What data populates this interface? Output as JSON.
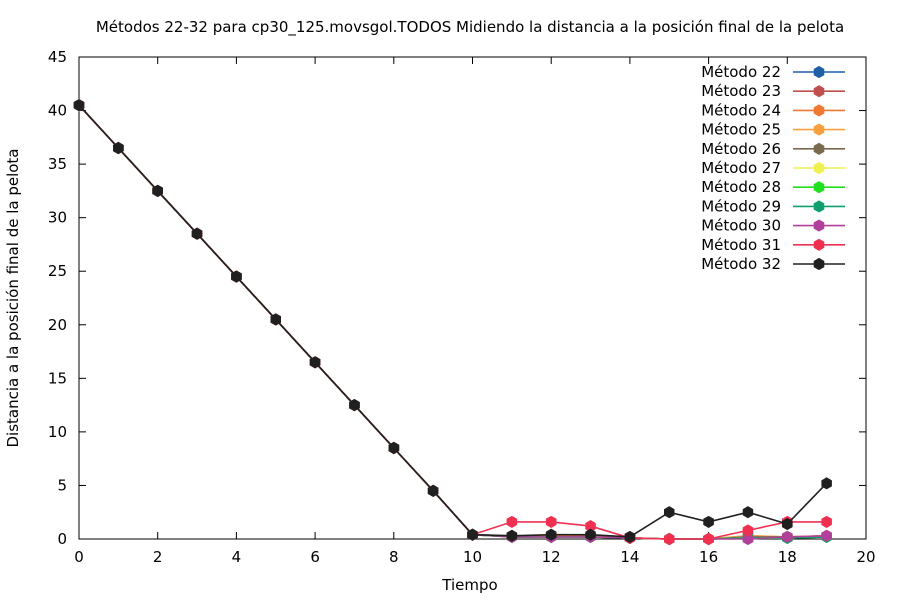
{
  "chart_data": {
    "type": "line",
    "title": "Métodos 22-32 para cp30_125.movsgol.TODOS Midiendo la distancia a la posición final de la pelota",
    "xlabel": "Tiempo",
    "ylabel": "Distancia a la posición final de la pelota",
    "xlim": [
      0,
      20
    ],
    "ylim": [
      0,
      45
    ],
    "xticks": [
      0,
      2,
      4,
      6,
      8,
      10,
      12,
      14,
      16,
      18,
      20
    ],
    "yticks": [
      0,
      5,
      10,
      15,
      20,
      25,
      30,
      35,
      40,
      45
    ],
    "grid": false,
    "legend_position": "top-right",
    "x": [
      0,
      1,
      2,
      3,
      4,
      5,
      6,
      7,
      8,
      9,
      10,
      11,
      12,
      13,
      14,
      15,
      16,
      17,
      18,
      19
    ],
    "series": [
      {
        "name": "Método 22",
        "color": "#1f5fa8",
        "values": [
          40.5,
          36.5,
          32.5,
          28.5,
          24.5,
          20.5,
          16.5,
          12.5,
          8.5,
          4.5,
          0.4,
          0.2,
          0.2,
          0.2,
          0.1,
          0.0,
          0.0,
          0.1,
          0.1,
          0.2
        ]
      },
      {
        "name": "Método 23",
        "color": "#c0504d",
        "values": [
          40.5,
          36.5,
          32.5,
          28.5,
          24.5,
          20.5,
          16.5,
          12.5,
          8.5,
          4.5,
          0.4,
          0.3,
          0.3,
          0.3,
          0.1,
          0.0,
          0.0,
          0.1,
          0.2,
          0.3
        ]
      },
      {
        "name": "Método 24",
        "color": "#f07830",
        "values": [
          40.5,
          36.5,
          32.5,
          28.5,
          24.5,
          20.5,
          16.5,
          12.5,
          8.5,
          4.5,
          0.4,
          0.2,
          0.3,
          0.2,
          0.1,
          0.0,
          0.0,
          0.3,
          0.2,
          0.3
        ]
      },
      {
        "name": "Método 25",
        "color": "#f8a040",
        "values": [
          40.5,
          36.5,
          32.5,
          28.5,
          24.5,
          20.5,
          16.5,
          12.5,
          8.5,
          4.5,
          0.4,
          0.2,
          0.2,
          0.2,
          0.1,
          0.0,
          0.0,
          0.3,
          0.2,
          0.3
        ]
      },
      {
        "name": "Método 26",
        "color": "#7a6a50",
        "values": [
          40.5,
          36.5,
          32.5,
          28.5,
          24.5,
          20.5,
          16.5,
          12.5,
          8.5,
          4.5,
          0.4,
          0.2,
          0.2,
          0.2,
          0.1,
          0.0,
          0.0,
          0.2,
          0.2,
          0.2
        ]
      },
      {
        "name": "Método 27",
        "color": "#f0f050",
        "values": [
          40.5,
          36.5,
          32.5,
          28.5,
          24.5,
          20.5,
          16.5,
          12.5,
          8.5,
          4.5,
          0.4,
          0.2,
          0.2,
          0.2,
          0.1,
          0.0,
          0.0,
          0.1,
          0.1,
          0.2
        ]
      },
      {
        "name": "Método 28",
        "color": "#20e020",
        "values": [
          40.5,
          36.5,
          32.5,
          28.5,
          24.5,
          20.5,
          16.5,
          12.5,
          8.5,
          4.5,
          0.4,
          0.2,
          0.2,
          0.2,
          0.1,
          0.0,
          0.0,
          0.1,
          0.1,
          0.2
        ]
      },
      {
        "name": "Método 29",
        "color": "#10a070",
        "values": [
          40.5,
          36.5,
          32.5,
          28.5,
          24.5,
          20.5,
          16.5,
          12.5,
          8.5,
          4.5,
          0.4,
          0.2,
          0.2,
          0.2,
          0.1,
          0.0,
          0.0,
          0.1,
          0.1,
          0.2
        ]
      },
      {
        "name": "Método 30",
        "color": "#b0409a",
        "values": [
          40.5,
          36.5,
          32.5,
          28.5,
          24.5,
          20.5,
          16.5,
          12.5,
          8.5,
          4.5,
          0.4,
          0.2,
          0.2,
          0.2,
          0.1,
          0.0,
          0.0,
          0.0,
          0.2,
          0.3
        ]
      },
      {
        "name": "Método 31",
        "color": "#f03050",
        "values": [
          40.5,
          36.5,
          32.5,
          28.5,
          24.5,
          20.5,
          16.5,
          12.5,
          8.5,
          4.5,
          0.4,
          1.6,
          1.6,
          1.2,
          0.1,
          0.0,
          0.0,
          0.8,
          1.6,
          1.6
        ]
      },
      {
        "name": "Método 32",
        "color": "#202020",
        "values": [
          40.5,
          36.5,
          32.5,
          28.5,
          24.5,
          20.5,
          16.5,
          12.5,
          8.5,
          4.5,
          0.4,
          0.3,
          0.4,
          0.4,
          0.2,
          2.5,
          1.6,
          2.5,
          1.4,
          5.2
        ]
      }
    ]
  }
}
